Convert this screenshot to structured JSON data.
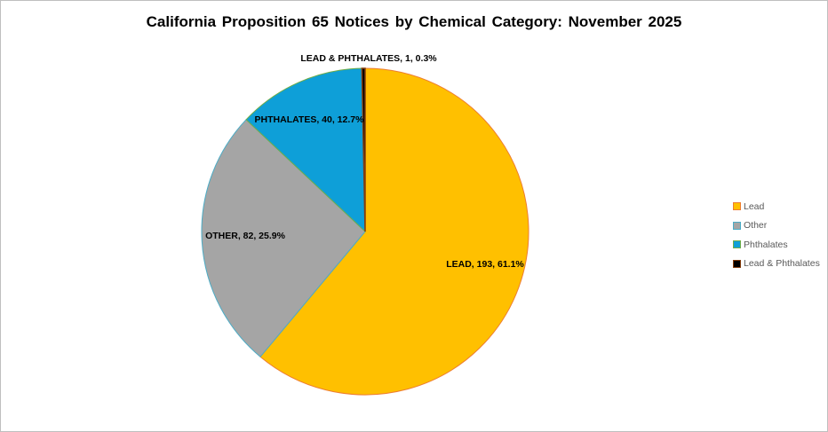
{
  "chart_data": {
    "type": "pie",
    "title": "California Proposition 65 Notices by Chemical Category: November 2025",
    "slices": [
      {
        "label": "LEAD",
        "legend": "Lead",
        "value": 193,
        "percent": "61.1%",
        "fill": "#FFC000",
        "border": "#ED7D31"
      },
      {
        "label": "OTHER",
        "legend": "Other",
        "value": 82,
        "percent": "25.9%",
        "fill": "#A5A5A5",
        "border": "#4BACC6"
      },
      {
        "label": "PHTHALATES",
        "legend": "Phthalates",
        "value": 40,
        "percent": "12.7%",
        "fill": "#0E9FD8",
        "border": "#70AD47"
      },
      {
        "label": "LEAD & PHTHALATES",
        "legend": "Lead & Phthalates",
        "value": 1,
        "percent": "0.3%",
        "fill": "#000000",
        "border": "#843C0C"
      }
    ],
    "legend_position": "right",
    "start_angle": "top, clockwise"
  }
}
